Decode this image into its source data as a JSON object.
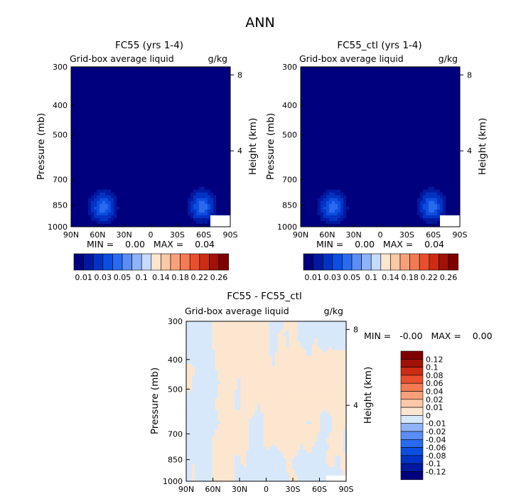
{
  "figure": {
    "title": "ANN"
  },
  "colors": {
    "abs_scale": [
      "#00007f",
      "#0019a0",
      "#0033c4",
      "#0c4ee0",
      "#2a6af0",
      "#5a8df5",
      "#8fb3f9",
      "#c6dafc",
      "#fde6cf",
      "#fcc8a8",
      "#f9a07b",
      "#f37a52",
      "#ea4f2d",
      "#cc2b14",
      "#a01107",
      "#7f0000"
    ],
    "diff_scale": [
      "#00007f",
      "#0019a0",
      "#0033c4",
      "#0c4ee0",
      "#2a6af0",
      "#5a8df5",
      "#8fb3f9",
      "#d7e8fa",
      "#fde6cf",
      "#fcc8a8",
      "#f9a07b",
      "#f37a52",
      "#ea4f2d",
      "#cc2b14",
      "#a01107",
      "#7f0000"
    ]
  },
  "chart_data": [
    {
      "type": "heatmap",
      "title": "FC55 (yrs 1-4)",
      "subtitle_left": "Grid-box average liquid",
      "subtitle_right": "g/kg",
      "ylabel": "Pressure (mb)",
      "ylabel_right": "Height (km)",
      "x_ticks": [
        "90N",
        "60N",
        "30N",
        "0",
        "30S",
        "60S",
        "90S"
      ],
      "y_ticks": [
        300,
        400,
        500,
        700,
        850,
        1000
      ],
      "y_right_ticks": [
        8,
        4
      ],
      "ylim": [
        1000,
        300
      ],
      "stats": {
        "min": "0.00",
        "max": "0.04"
      },
      "stats_text": "MIN =    0.00   MAX =    0.04",
      "features": [
        {
          "lat": 54,
          "p": 865,
          "peak": 0.04
        },
        {
          "lat": -58,
          "p": 860,
          "peak": 0.04
        }
      ],
      "colorbar_labels": [
        "0.01",
        "0.03",
        "0.05",
        "0.1",
        "0.14",
        "0.18",
        "0.22",
        "0.26"
      ]
    },
    {
      "type": "heatmap",
      "title": "FC55_ctl (yrs 1-4)",
      "subtitle_left": "Grid-box average liquid",
      "subtitle_right": "g/kg",
      "ylabel": "Pressure (mb)",
      "ylabel_right": "Height (km)",
      "x_ticks": [
        "90N",
        "60N",
        "30N",
        "0",
        "30S",
        "60S",
        "90S"
      ],
      "y_ticks": [
        300,
        400,
        500,
        700,
        850,
        1000
      ],
      "y_right_ticks": [
        8,
        4
      ],
      "ylim": [
        1000,
        300
      ],
      "stats": {
        "min": "0.00",
        "max": "0.04"
      },
      "stats_text": "MIN =    0.00   MAX =    0.04",
      "features": [
        {
          "lat": 54,
          "p": 865,
          "peak": 0.04
        },
        {
          "lat": -58,
          "p": 860,
          "peak": 0.04
        }
      ],
      "colorbar_labels": [
        "0.01",
        "0.03",
        "0.05",
        "0.1",
        "0.14",
        "0.18",
        "0.22",
        "0.26"
      ]
    },
    {
      "type": "heatmap",
      "title": "FC55 - FC55_ctl",
      "subtitle_left": "Grid-box average liquid",
      "subtitle_right": "g/kg",
      "ylabel": "Pressure (mb)",
      "ylabel_right": "Height (km)",
      "x_ticks": [
        "90N",
        "60N",
        "30N",
        "0",
        "30S",
        "60S",
        "90S"
      ],
      "y_ticks": [
        300,
        400,
        500,
        700,
        850,
        1000
      ],
      "y_right_ticks": [
        8,
        4
      ],
      "ylim": [
        1000,
        300
      ],
      "stats": {
        "min": "-0.00",
        "max": "0.00"
      },
      "stats_text": "MIN =   -0.00   MAX =    0.00",
      "values_range": [
        -0.01,
        0.01
      ],
      "colorbar_labels": [
        "0.12",
        "0.1",
        "0.08",
        "0.06",
        "0.04",
        "0.02",
        "0.01",
        "0",
        "-0.01",
        "-0.02",
        "-0.04",
        "-0.06",
        "-0.08",
        "-0.1",
        "-0.12"
      ]
    }
  ]
}
